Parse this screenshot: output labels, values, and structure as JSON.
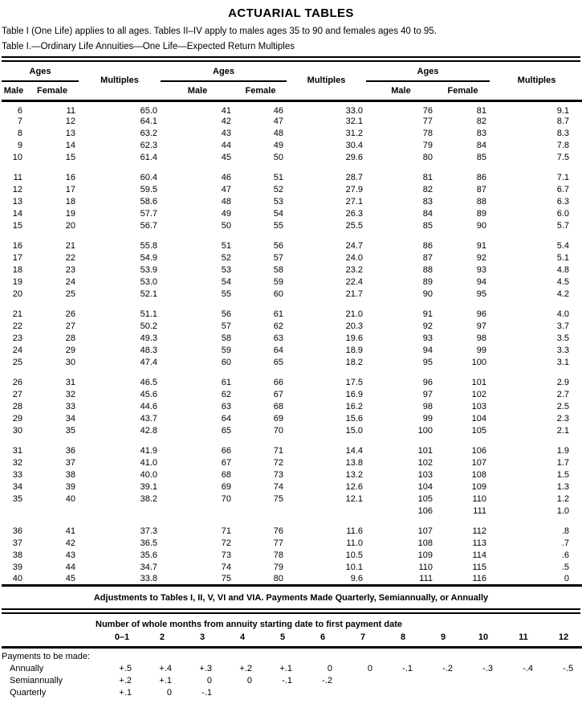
{
  "page": {
    "title": "ACTUARIAL TABLES",
    "intro": "Table I (One Life) applies to all ages. Tables II–IV apply to males ages 35 to 90 and females ages 40 to 95.",
    "caption": "Table I.—Ordinary Life Annuities—One Life—Expected Return Multiples"
  },
  "table1": {
    "headers": {
      "ages": "Ages",
      "male": "Male",
      "female": "Female",
      "multiples": "Multiples"
    },
    "blocks": [
      [
        [
          "6",
          "11",
          "65.0",
          "41",
          "46",
          "33.0",
          "76",
          "81",
          "9.1"
        ],
        [
          "7",
          "12",
          "64.1",
          "42",
          "47",
          "32.1",
          "77",
          "82",
          "8.7"
        ],
        [
          "8",
          "13",
          "63.2",
          "43",
          "48",
          "31.2",
          "78",
          "83",
          "8.3"
        ],
        [
          "9",
          "14",
          "62.3",
          "44",
          "49",
          "30.4",
          "79",
          "84",
          "7.8"
        ],
        [
          "10",
          "15",
          "61.4",
          "45",
          "50",
          "29.6",
          "80",
          "85",
          "7.5"
        ]
      ],
      [
        [
          "11",
          "16",
          "60.4",
          "46",
          "51",
          "28.7",
          "81",
          "86",
          "7.1"
        ],
        [
          "12",
          "17",
          "59.5",
          "47",
          "52",
          "27.9",
          "82",
          "87",
          "6.7"
        ],
        [
          "13",
          "18",
          "58.6",
          "48",
          "53",
          "27.1",
          "83",
          "88",
          "6.3"
        ],
        [
          "14",
          "19",
          "57.7",
          "49",
          "54",
          "26.3",
          "84",
          "89",
          "6.0"
        ],
        [
          "15",
          "20",
          "56.7",
          "50",
          "55",
          "25.5",
          "85",
          "90",
          "5.7"
        ]
      ],
      [
        [
          "16",
          "21",
          "55.8",
          "51",
          "56",
          "24.7",
          "86",
          "91",
          "5.4"
        ],
        [
          "17",
          "22",
          "54.9",
          "52",
          "57",
          "24.0",
          "87",
          "92",
          "5.1"
        ],
        [
          "18",
          "23",
          "53.9",
          "53",
          "58",
          "23.2",
          "88",
          "93",
          "4.8"
        ],
        [
          "19",
          "24",
          "53.0",
          "54",
          "59",
          "22.4",
          "89",
          "94",
          "4.5"
        ],
        [
          "20",
          "25",
          "52.1",
          "55",
          "60",
          "21.7",
          "90",
          "95",
          "4.2"
        ]
      ],
      [
        [
          "21",
          "26",
          "51.1",
          "56",
          "61",
          "21.0",
          "91",
          "96",
          "4.0"
        ],
        [
          "22",
          "27",
          "50.2",
          "57",
          "62",
          "20.3",
          "92",
          "97",
          "3.7"
        ],
        [
          "23",
          "28",
          "49.3",
          "58",
          "63",
          "19.6",
          "93",
          "98",
          "3.5"
        ],
        [
          "24",
          "29",
          "48.3",
          "59",
          "64",
          "18.9",
          "94",
          "99",
          "3.3"
        ],
        [
          "25",
          "30",
          "47.4",
          "60",
          "65",
          "18.2",
          "95",
          "100",
          "3.1"
        ]
      ],
      [
        [
          "26",
          "31",
          "46.5",
          "61",
          "66",
          "17.5",
          "96",
          "101",
          "2.9"
        ],
        [
          "27",
          "32",
          "45.6",
          "62",
          "67",
          "16.9",
          "97",
          "102",
          "2.7"
        ],
        [
          "28",
          "33",
          "44.6",
          "63",
          "68",
          "16.2",
          "98",
          "103",
          "2.5"
        ],
        [
          "29",
          "34",
          "43.7",
          "64",
          "69",
          "15.6",
          "99",
          "104",
          "2.3"
        ],
        [
          "30",
          "35",
          "42.8",
          "65",
          "70",
          "15.0",
          "100",
          "105",
          "2.1"
        ]
      ],
      [
        [
          "31",
          "36",
          "41.9",
          "66",
          "71",
          "14.4",
          "101",
          "106",
          "1.9"
        ],
        [
          "32",
          "37",
          "41.0",
          "67",
          "72",
          "13.8",
          "102",
          "107",
          "1.7"
        ],
        [
          "33",
          "38",
          "40.0",
          "68",
          "73",
          "13.2",
          "103",
          "108",
          "1.5"
        ],
        [
          "34",
          "39",
          "39.1",
          "69",
          "74",
          "12.6",
          "104",
          "109",
          "1.3"
        ],
        [
          "35",
          "40",
          "38.2",
          "70",
          "75",
          "12.1",
          "105",
          "110",
          "1.2"
        ],
        [
          "",
          "",
          "",
          "",
          "",
          "",
          "106",
          "111",
          "1.0"
        ]
      ],
      [
        [
          "36",
          "41",
          "37.3",
          "71",
          "76",
          "11.6",
          "107",
          "112",
          ".8"
        ],
        [
          "37",
          "42",
          "36.5",
          "72",
          "77",
          "11.0",
          "108",
          "113",
          ".7"
        ],
        [
          "38",
          "43",
          "35.6",
          "73",
          "78",
          "10.5",
          "109",
          "114",
          ".6"
        ],
        [
          "39",
          "44",
          "34.7",
          "74",
          "79",
          "10.1",
          "110",
          "115",
          ".5"
        ],
        [
          "40",
          "45",
          "33.8",
          "75",
          "80",
          "9.6",
          "111",
          "116",
          "0"
        ]
      ]
    ]
  },
  "adjustments": {
    "title": "Adjustments to Tables I, II, V, VI and VIA. Payments Made Quarterly, Semiannually, or Annually",
    "subtitle": "Number of whole months from annuity starting date to first payment date",
    "month_headers": [
      "0–1",
      "2",
      "3",
      "4",
      "5",
      "6",
      "7",
      "8",
      "9",
      "10",
      "11",
      "12"
    ],
    "payments_label": "Payments to be made:",
    "rows": [
      {
        "label": "Annually",
        "values": [
          "+.5",
          "+.4",
          "+.3",
          "+.2",
          "+.1",
          "0",
          "0",
          "-.1",
          "-.2",
          "-.3",
          "-.4",
          "-.5"
        ]
      },
      {
        "label": "Semiannually",
        "values": [
          "+.2",
          "+.1",
          "0",
          "0",
          "-.1",
          "-.2",
          "",
          "",
          "",
          "",
          "",
          ""
        ]
      },
      {
        "label": "Quarterly",
        "values": [
          "+.1",
          "0",
          "-.1",
          "",
          "",
          "",
          "",
          "",
          "",
          "",
          "",
          ""
        ]
      }
    ]
  }
}
